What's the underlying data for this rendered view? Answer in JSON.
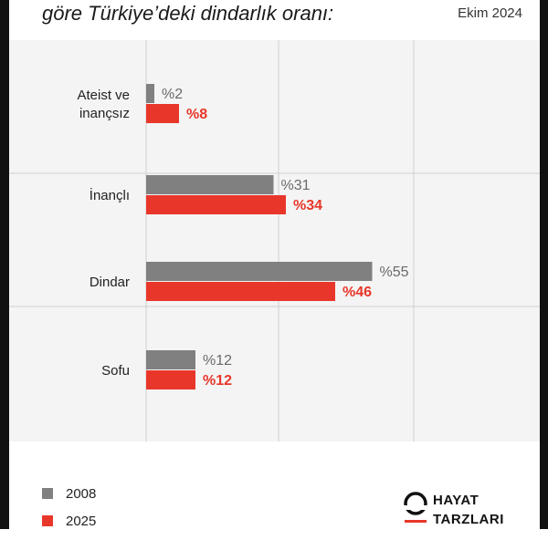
{
  "header": {
    "title": "göre Türkiye’deki dindarlık oranı:",
    "date": "Ekim 2024"
  },
  "colors": {
    "series_2008": "#808080",
    "series_2025": "#e8372a",
    "grid": "#d0d0d0",
    "panel": "#f4f4f4"
  },
  "chart_data": {
    "type": "bar",
    "orientation": "horizontal",
    "title": "göre Türkiye’deki dindarlık oranı:",
    "categories": [
      "Ateist ve\ninançsız",
      "İnançlı",
      "Dindar",
      "Sofu"
    ],
    "series": [
      {
        "name": "2008",
        "values": [
          2,
          31,
          55,
          12
        ],
        "labels": [
          "%2",
          "%31",
          "%55",
          "%12"
        ]
      },
      {
        "name": "2025",
        "values": [
          8,
          34,
          46,
          12
        ],
        "labels": [
          "%8",
          "%34",
          "%46",
          "%12"
        ]
      }
    ],
    "xlim": [
      0,
      60
    ],
    "grid": true,
    "legend_position": "bottom-left"
  },
  "legend": {
    "items": [
      {
        "label": "2008",
        "color": "#808080"
      },
      {
        "label": "2025",
        "color": "#e8372a"
      }
    ]
  },
  "logo": {
    "line1": "HAYAT",
    "line2": "TARZLARI",
    "icon": "hayat-tarzlari-logo-icon"
  }
}
